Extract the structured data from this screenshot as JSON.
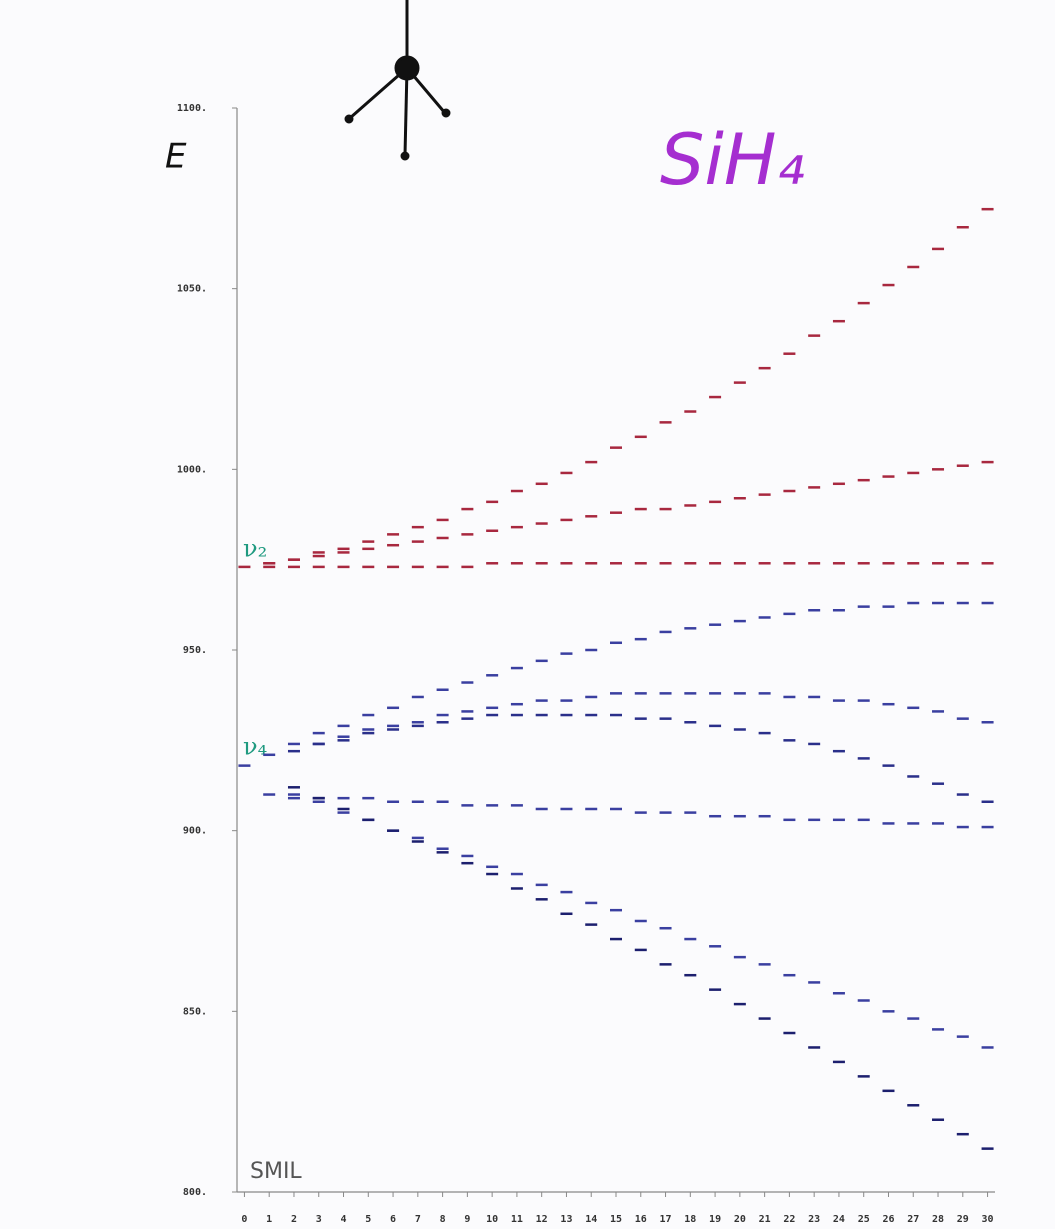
{
  "chart_data": {
    "type": "scatter",
    "marker": "dash",
    "title": "SiH₄",
    "y_label": "E",
    "annotations": [
      "ν₂",
      "ν₄",
      "SMIL"
    ],
    "x": [
      0,
      1,
      2,
      3,
      4,
      5,
      6,
      7,
      8,
      9,
      10,
      11,
      12,
      13,
      14,
      15,
      16,
      17,
      18,
      19,
      20,
      21,
      22,
      23,
      24,
      25,
      26,
      27,
      28,
      29,
      30
    ],
    "xlim": [
      -0.3,
      30.3
    ],
    "xticks": [
      0,
      1,
      2,
      3,
      4,
      5,
      6,
      7,
      8,
      9,
      10,
      11,
      12,
      13,
      14,
      15,
      16,
      17,
      18,
      19,
      20,
      21,
      22,
      23,
      24,
      25,
      26,
      27,
      28,
      29,
      30
    ],
    "ylim": [
      800,
      1100
    ],
    "yticks": [
      {
        "value": 800,
        "label": "800."
      },
      {
        "value": 850,
        "label": "850."
      },
      {
        "value": 900,
        "label": "900."
      },
      {
        "value": 950,
        "label": "950."
      },
      {
        "value": 1000,
        "label": "1000."
      },
      {
        "value": 1050,
        "label": "1050."
      },
      {
        "value": 1100,
        "label": "1100."
      }
    ],
    "grid": false,
    "series": [
      {
        "color": "#a8283f",
        "values": [
          973,
          974,
          975,
          977,
          978,
          980,
          982,
          984,
          986,
          989,
          991,
          994,
          996,
          999,
          1002,
          1006,
          1009,
          1013,
          1016,
          1020,
          1024,
          1028,
          1032,
          1037,
          1041,
          1046,
          1051,
          1056,
          1061,
          1067,
          1072
        ]
      },
      {
        "color": "#a8283f",
        "values": [
          null,
          974,
          975,
          976,
          977,
          978,
          979,
          980,
          981,
          982,
          983,
          984,
          985,
          986,
          987,
          988,
          989,
          989,
          990,
          991,
          992,
          993,
          994,
          995,
          996,
          997,
          998,
          999,
          1000,
          1001,
          1002
        ]
      },
      {
        "color": "#a8283f",
        "values": [
          null,
          973,
          973,
          973,
          973,
          973,
          973,
          973,
          973,
          973,
          974,
          974,
          974,
          974,
          974,
          974,
          974,
          974,
          974,
          974,
          974,
          974,
          974,
          974,
          974,
          974,
          974,
          974,
          974,
          974,
          974
        ]
      },
      {
        "color": "#3a3fa0",
        "values": [
          918,
          921,
          924,
          927,
          929,
          932,
          934,
          937,
          939,
          941,
          943,
          945,
          947,
          949,
          950,
          952,
          953,
          955,
          956,
          957,
          958,
          959,
          960,
          961,
          961,
          962,
          962,
          963,
          963,
          963,
          963
        ]
      },
      {
        "color": "#3a3fa0",
        "values": [
          null,
          null,
          null,
          924,
          926,
          928,
          929,
          930,
          932,
          933,
          934,
          935,
          936,
          936,
          937,
          938,
          938,
          938,
          938,
          938,
          938,
          938,
          937,
          937,
          936,
          936,
          935,
          934,
          933,
          931,
          930
        ]
      },
      {
        "color": "#2a2f8a",
        "values": [
          null,
          null,
          922,
          924,
          925,
          927,
          928,
          929,
          930,
          931,
          932,
          932,
          932,
          932,
          932,
          932,
          931,
          931,
          930,
          929,
          928,
          927,
          925,
          924,
          922,
          920,
          918,
          915,
          913,
          910,
          908
        ]
      },
      {
        "color": "#3a3fa0",
        "values": [
          null,
          910,
          909,
          909,
          909,
          909,
          908,
          908,
          908,
          907,
          907,
          907,
          906,
          906,
          906,
          906,
          905,
          905,
          905,
          904,
          904,
          904,
          903,
          903,
          903,
          903,
          902,
          902,
          902,
          901,
          901
        ]
      },
      {
        "color": "#3a3fa0",
        "values": [
          null,
          null,
          910,
          908,
          905,
          903,
          900,
          898,
          895,
          893,
          890,
          888,
          885,
          883,
          880,
          878,
          875,
          873,
          870,
          868,
          865,
          863,
          860,
          858,
          855,
          853,
          850,
          848,
          845,
          843,
          840
        ]
      },
      {
        "color": "#1c1f6e",
        "values": [
          null,
          null,
          912,
          909,
          906,
          903,
          900,
          897,
          894,
          891,
          888,
          884,
          881,
          877,
          874,
          870,
          867,
          863,
          860,
          856,
          852,
          848,
          844,
          840,
          836,
          832,
          828,
          824,
          820,
          816,
          812
        ]
      }
    ]
  }
}
